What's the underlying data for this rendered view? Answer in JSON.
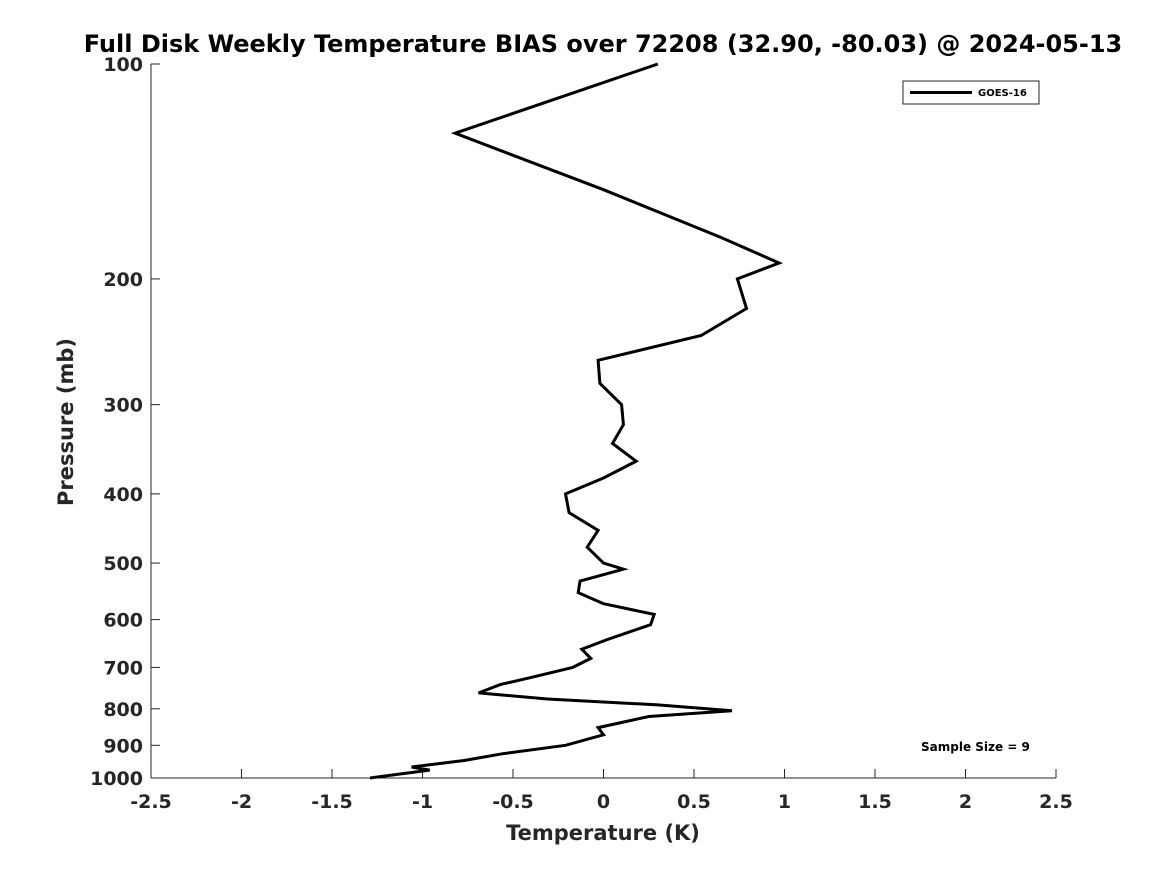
{
  "chart_data": {
    "type": "line",
    "title": "Full Disk Weekly Temperature BIAS over 72208 (32.90, -80.03) @ 2024-05-13",
    "xlabel": "Temperature (K)",
    "ylabel": "Pressure (mb)",
    "xlim": [
      -2.5,
      2.5
    ],
    "ylim": [
      1000,
      100
    ],
    "yscale": "log",
    "y_reversed": true,
    "x_ticks": [
      "-2.5",
      "-2",
      "-1.5",
      "-1",
      "-0.5",
      "0",
      "0.5",
      "1",
      "1.5",
      "2",
      "2.5"
    ],
    "y_ticks": [
      "100",
      "200",
      "300",
      "400",
      "500",
      "600",
      "700",
      "800",
      "900",
      "1000"
    ],
    "grid": false,
    "legend_position": "top-right",
    "series": [
      {
        "name": "GOES-16",
        "color": "#000000",
        "points": [
          {
            "t": 0.3,
            "p": 100
          },
          {
            "t": -0.82,
            "p": 125
          },
          {
            "t": 0.0,
            "p": 150
          },
          {
            "t": 0.65,
            "p": 175
          },
          {
            "t": 0.97,
            "p": 190
          },
          {
            "t": 0.74,
            "p": 200
          },
          {
            "t": 0.79,
            "p": 220
          },
          {
            "t": 0.54,
            "p": 240
          },
          {
            "t": -0.03,
            "p": 260
          },
          {
            "t": -0.02,
            "p": 280
          },
          {
            "t": 0.1,
            "p": 300
          },
          {
            "t": 0.11,
            "p": 320
          },
          {
            "t": 0.05,
            "p": 340
          },
          {
            "t": 0.18,
            "p": 360
          },
          {
            "t": 0.0,
            "p": 380
          },
          {
            "t": -0.21,
            "p": 400
          },
          {
            "t": -0.19,
            "p": 425
          },
          {
            "t": -0.03,
            "p": 450
          },
          {
            "t": -0.09,
            "p": 475
          },
          {
            "t": 0.0,
            "p": 500
          },
          {
            "t": 0.11,
            "p": 510
          },
          {
            "t": -0.13,
            "p": 530
          },
          {
            "t": -0.14,
            "p": 550
          },
          {
            "t": 0.0,
            "p": 570
          },
          {
            "t": 0.28,
            "p": 590
          },
          {
            "t": 0.26,
            "p": 610
          },
          {
            "t": 0.02,
            "p": 640
          },
          {
            "t": -0.12,
            "p": 660
          },
          {
            "t": -0.07,
            "p": 680
          },
          {
            "t": -0.17,
            "p": 700
          },
          {
            "t": -0.42,
            "p": 725
          },
          {
            "t": -0.57,
            "p": 740
          },
          {
            "t": -0.69,
            "p": 760
          },
          {
            "t": -0.31,
            "p": 775
          },
          {
            "t": 0.3,
            "p": 790
          },
          {
            "t": 0.71,
            "p": 805
          },
          {
            "t": 0.25,
            "p": 820
          },
          {
            "t": -0.03,
            "p": 850
          },
          {
            "t": 0.0,
            "p": 870
          },
          {
            "t": -0.21,
            "p": 900
          },
          {
            "t": -0.56,
            "p": 925
          },
          {
            "t": -0.77,
            "p": 945
          },
          {
            "t": -1.06,
            "p": 965
          },
          {
            "t": -0.96,
            "p": 975
          },
          {
            "t": -1.29,
            "p": 1000
          }
        ]
      }
    ],
    "annotations": [
      "Sample Size = 9"
    ]
  }
}
